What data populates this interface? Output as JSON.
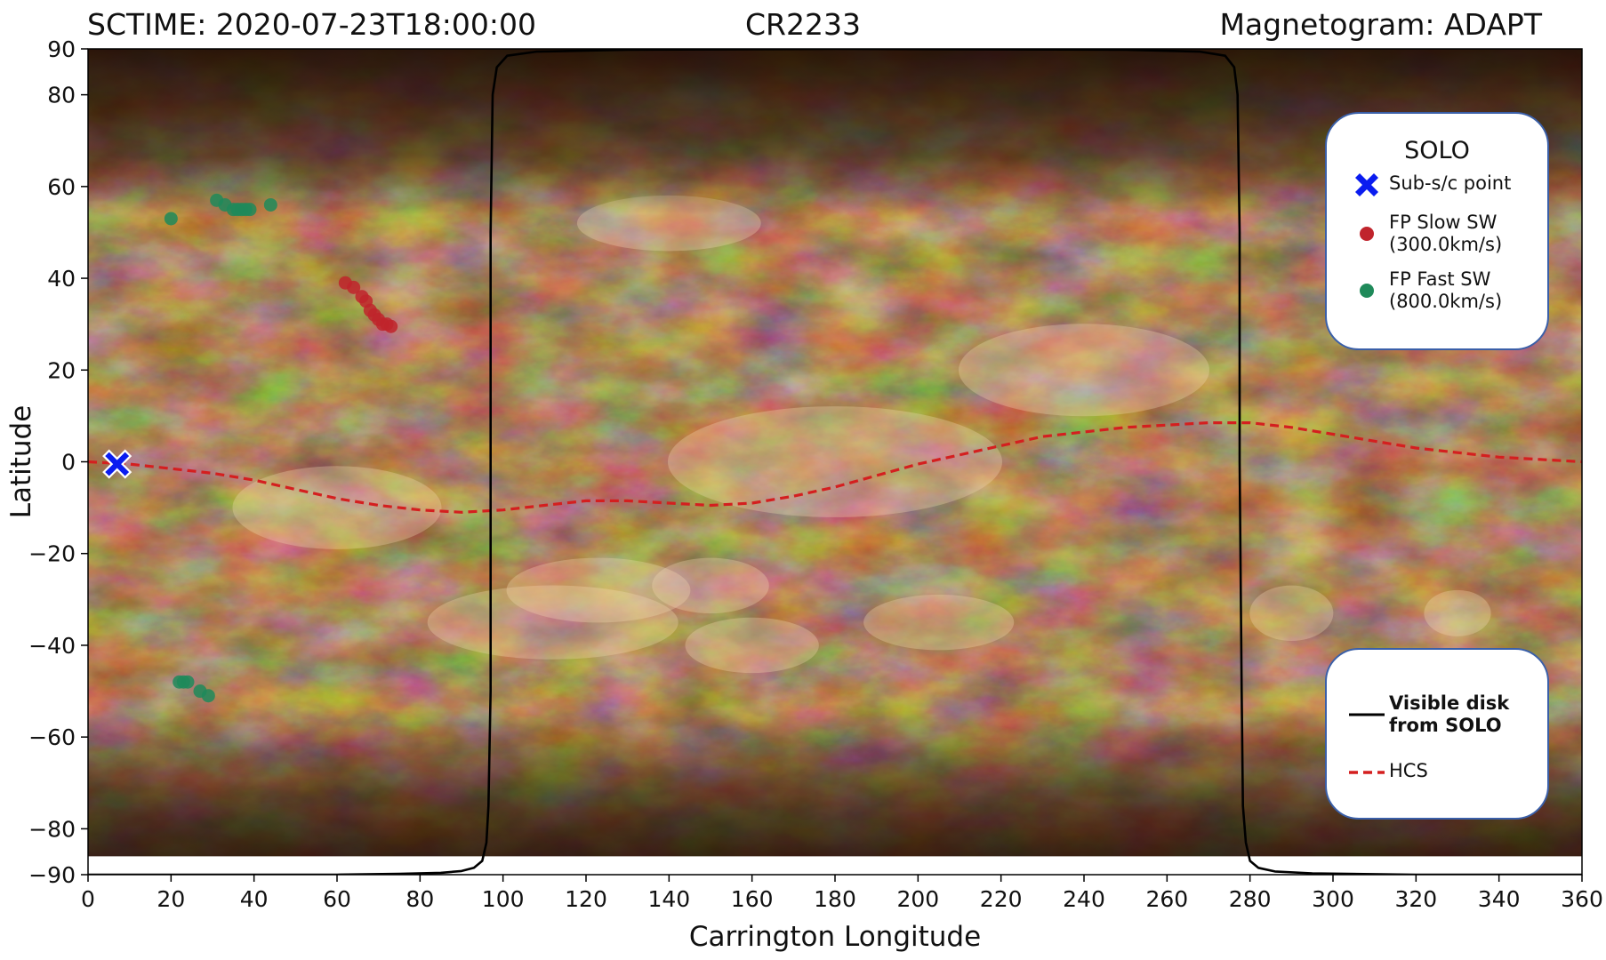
{
  "header": {
    "left": "SCTIME: 2020-07-23T18:00:00",
    "center": "CR2233",
    "right": "Magnetogram: ADAPT"
  },
  "legend_solo": {
    "title": "SOLO",
    "items": [
      {
        "label": "Sub-s/c point",
        "symbol": "x-marker",
        "color": "#0a1cf0"
      },
      {
        "label": "FP Slow SW\n(300.0km/s)",
        "symbol": "dot",
        "color": "#c0242c"
      },
      {
        "label": "FP Fast SW\n(800.0km/s)",
        "symbol": "dot",
        "color": "#1f8a5a"
      }
    ]
  },
  "legend_lines": {
    "items": [
      {
        "label": "Visible disk\nfrom SOLO",
        "style": "solid",
        "color": "#000000"
      },
      {
        "label": "HCS",
        "style": "dashed",
        "color": "#d41f1f"
      }
    ]
  },
  "chart_data": {
    "type": "scatter",
    "title": "",
    "xlabel": "Carrington Longitude",
    "ylabel": "Latitude",
    "xlim": [
      0,
      360
    ],
    "ylim": [
      -90,
      90
    ],
    "xticks": [
      0,
      20,
      40,
      60,
      80,
      100,
      120,
      140,
      160,
      180,
      200,
      220,
      240,
      260,
      280,
      300,
      320,
      340,
      360
    ],
    "yticks": [
      -90,
      -80,
      -60,
      -40,
      -20,
      0,
      20,
      40,
      60,
      80,
      90
    ],
    "ytick_labels": [
      "−90",
      "−80",
      "−60",
      "−40",
      "−20",
      "0",
      "20",
      "40",
      "60",
      "80",
      "90"
    ],
    "background": "ADAPT magnetogram (copper colormap)",
    "colors": {
      "dark": "#2a1205",
      "mid": "#7a4a22",
      "light": "#e8c596",
      "bright": "#fff3de"
    },
    "series": [
      {
        "name": "Sub-s/c point",
        "kind": "marker",
        "color": "#0a1cf0",
        "points": [
          [
            7,
            -0.5
          ]
        ]
      },
      {
        "name": "FP Slow SW",
        "kind": "points",
        "color": "#c0242c",
        "points": [
          [
            62,
            39
          ],
          [
            64,
            38
          ],
          [
            66,
            36
          ],
          [
            67,
            35
          ],
          [
            68,
            33
          ],
          [
            69,
            32
          ],
          [
            70,
            31
          ],
          [
            71,
            30
          ],
          [
            72,
            30
          ],
          [
            73,
            29.5
          ]
        ]
      },
      {
        "name": "FP Fast SW",
        "kind": "points",
        "color": "#1f8a5a",
        "points": [
          [
            20,
            53
          ],
          [
            31,
            57
          ],
          [
            33,
            56
          ],
          [
            35,
            55
          ],
          [
            36,
            55
          ],
          [
            37,
            55
          ],
          [
            38,
            55
          ],
          [
            39,
            55
          ],
          [
            44,
            56
          ],
          [
            22,
            -48
          ],
          [
            23,
            -48
          ],
          [
            24,
            -48
          ],
          [
            27,
            -50
          ],
          [
            29,
            -51
          ]
        ]
      },
      {
        "name": "HCS",
        "kind": "dashed-line",
        "color": "#d41f1f",
        "points": [
          [
            0,
            0
          ],
          [
            10,
            -0.5
          ],
          [
            20,
            -1.5
          ],
          [
            30,
            -2.5
          ],
          [
            40,
            -4
          ],
          [
            50,
            -6
          ],
          [
            60,
            -8
          ],
          [
            70,
            -9.5
          ],
          [
            80,
            -10.5
          ],
          [
            90,
            -11
          ],
          [
            100,
            -10.5
          ],
          [
            110,
            -9.5
          ],
          [
            120,
            -8.5
          ],
          [
            130,
            -8.5
          ],
          [
            140,
            -9
          ],
          [
            150,
            -9.5
          ],
          [
            160,
            -9
          ],
          [
            170,
            -7.5
          ],
          [
            180,
            -5.5
          ],
          [
            190,
            -3
          ],
          [
            200,
            -0.5
          ],
          [
            210,
            1.5
          ],
          [
            220,
            3.5
          ],
          [
            230,
            5.5
          ],
          [
            240,
            6.5
          ],
          [
            250,
            7.5
          ],
          [
            260,
            8
          ],
          [
            270,
            8.5
          ],
          [
            280,
            8.5
          ],
          [
            290,
            7.5
          ],
          [
            300,
            6
          ],
          [
            310,
            4.5
          ],
          [
            320,
            3
          ],
          [
            330,
            2
          ],
          [
            340,
            1
          ],
          [
            350,
            0.5
          ],
          [
            360,
            0
          ]
        ]
      },
      {
        "name": "Visible disk from SOLO",
        "kind": "solid-line",
        "color": "#000000",
        "points": [
          [
            0,
            -90
          ],
          [
            60,
            -90
          ],
          [
            75,
            -89.8
          ],
          [
            85,
            -89.6
          ],
          [
            90,
            -89.2
          ],
          [
            93,
            -88.5
          ],
          [
            95,
            -87
          ],
          [
            96,
            -83
          ],
          [
            96.5,
            -75
          ],
          [
            97,
            -50
          ],
          [
            97,
            0
          ],
          [
            97,
            50
          ],
          [
            97.5,
            80
          ],
          [
            98.5,
            86
          ],
          [
            101,
            88.5
          ],
          [
            108,
            89.4
          ],
          [
            130,
            89.8
          ],
          [
            180,
            90
          ],
          [
            250,
            89.8
          ],
          [
            268,
            89.4
          ],
          [
            274,
            88.5
          ],
          [
            276.2,
            86
          ],
          [
            277,
            80
          ],
          [
            277.5,
            50
          ],
          [
            277.5,
            0
          ],
          [
            278,
            -50
          ],
          [
            278.3,
            -75
          ],
          [
            279,
            -83
          ],
          [
            280,
            -87
          ],
          [
            282,
            -88.5
          ],
          [
            286,
            -89.3
          ],
          [
            295,
            -89.7
          ],
          [
            320,
            -90
          ],
          [
            360,
            -90
          ]
        ]
      }
    ]
  }
}
